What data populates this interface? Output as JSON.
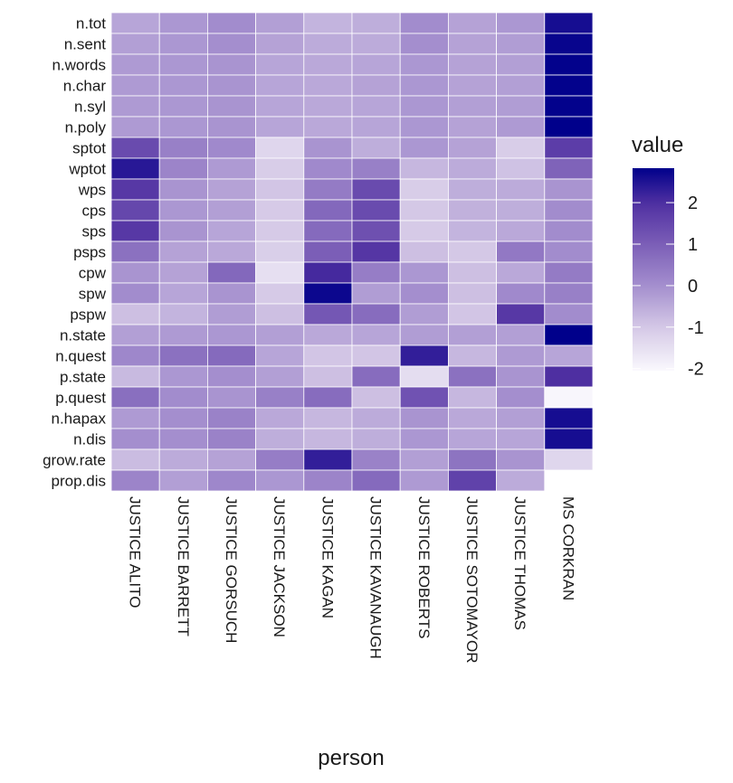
{
  "chart_data": {
    "type": "heatmap",
    "title": "",
    "xlabel": "person",
    "ylabel": "",
    "x": [
      "JUSTICE ALITO",
      "JUSTICE BARRETT",
      "JUSTICE GORSUCH",
      "JUSTICE JACKSON",
      "JUSTICE KAGAN",
      "JUSTICE KAVANAUGH",
      "JUSTICE ROBERTS",
      "JUSTICE SOTOMAYOR",
      "JUSTICE THOMAS",
      "MS CORKRAN"
    ],
    "y": [
      "n.tot",
      "n.sent",
      "n.words",
      "n.char",
      "n.syl",
      "n.poly",
      "sptot",
      "wptot",
      "wps",
      "cps",
      "sps",
      "psps",
      "cpw",
      "spw",
      "pspw",
      "n.state",
      "n.quest",
      "p.state",
      "p.quest",
      "n.hapax",
      "n.dis",
      "grow.rate",
      "prop.dis"
    ],
    "values": [
      [
        -0.4,
        -0.15,
        0.05,
        -0.3,
        -0.65,
        -0.55,
        0.05,
        -0.35,
        -0.15,
        2.6
      ],
      [
        -0.3,
        -0.15,
        0,
        -0.35,
        -0.5,
        -0.5,
        0,
        -0.35,
        -0.25,
        2.75
      ],
      [
        -0.2,
        -0.15,
        -0.1,
        -0.4,
        -0.45,
        -0.4,
        -0.15,
        -0.35,
        -0.3,
        2.8
      ],
      [
        -0.2,
        -0.15,
        -0.1,
        -0.4,
        -0.45,
        -0.35,
        -0.15,
        -0.35,
        -0.3,
        2.8
      ],
      [
        -0.2,
        -0.15,
        -0.1,
        -0.4,
        -0.45,
        -0.4,
        -0.15,
        -0.3,
        -0.25,
        2.8
      ],
      [
        -0.2,
        -0.15,
        -0.1,
        -0.4,
        -0.45,
        -0.4,
        -0.15,
        -0.35,
        -0.2,
        2.83
      ],
      [
        1.4,
        0.3,
        0.1,
        -1.3,
        -0.1,
        -0.55,
        -0.15,
        -0.35,
        -1.1,
        1.7
      ],
      [
        2.4,
        0.2,
        -0.2,
        -1.1,
        0.1,
        0.3,
        -0.7,
        -0.5,
        -0.9,
        0.9
      ],
      [
        1.8,
        -0.1,
        -0.35,
        -0.95,
        0.4,
        1.4,
        -1.1,
        -0.55,
        -0.5,
        -0.1
      ],
      [
        1.5,
        -0.15,
        -0.3,
        -1.05,
        0.8,
        1.4,
        -1.0,
        -0.6,
        -0.55,
        0.05
      ],
      [
        1.8,
        -0.1,
        -0.4,
        -1.05,
        0.75,
        1.3,
        -1.05,
        -0.65,
        -0.45,
        0.05
      ],
      [
        0.6,
        -0.35,
        -0.45,
        -1.15,
        1.0,
        1.85,
        -0.85,
        -1.0,
        0.45,
        0.05
      ],
      [
        -0.1,
        -0.35,
        0.8,
        -1.5,
        2.1,
        0.35,
        -0.15,
        -0.85,
        -0.45,
        0.4
      ],
      [
        0.05,
        -0.4,
        -0.1,
        -1.05,
        2.7,
        -0.25,
        0,
        -0.85,
        0.1,
        0.3
      ],
      [
        -0.85,
        -0.65,
        -0.25,
        -0.85,
        1.15,
        0.7,
        -0.25,
        -0.95,
        1.8,
        0.05
      ],
      [
        -0.3,
        -0.2,
        -0.15,
        -0.3,
        -0.45,
        -0.4,
        -0.25,
        -0.3,
        -0.3,
        2.83
      ],
      [
        0.15,
        0.6,
        0.75,
        -0.4,
        -0.95,
        -0.95,
        2.3,
        -0.7,
        -0.2,
        -0.4
      ],
      [
        -0.75,
        -0.15,
        0,
        -0.3,
        -0.85,
        0.7,
        -1.45,
        0.6,
        -0.1,
        2.0
      ],
      [
        0.65,
        0.05,
        -0.1,
        0.3,
        0.7,
        -0.85,
        1.25,
        -0.7,
        0,
        -2.0
      ],
      [
        -0.2,
        0,
        0.25,
        -0.45,
        -0.7,
        -0.5,
        -0.1,
        -0.45,
        -0.3,
        2.6
      ],
      [
        0,
        0,
        0.25,
        -0.55,
        -0.7,
        -0.55,
        -0.15,
        -0.4,
        -0.4,
        2.6
      ],
      [
        -0.8,
        -0.5,
        -0.35,
        0.35,
        2.3,
        0.25,
        -0.3,
        0.55,
        -0.1,
        -1.3
      ],
      [
        0.2,
        -0.3,
        0.15,
        -0.15,
        0.2,
        0.75,
        -0.2,
        1.6,
        -0.5,
        null
      ]
    ],
    "legend": {
      "title": "value",
      "ticks": [
        2,
        1,
        0,
        -1,
        -2
      ],
      "range": [
        -2.05,
        2.83
      ],
      "placement": "right"
    },
    "colors": {
      "low": "#FFFFFF",
      "mid": "#A48ECE",
      "high": "#00008B"
    }
  }
}
